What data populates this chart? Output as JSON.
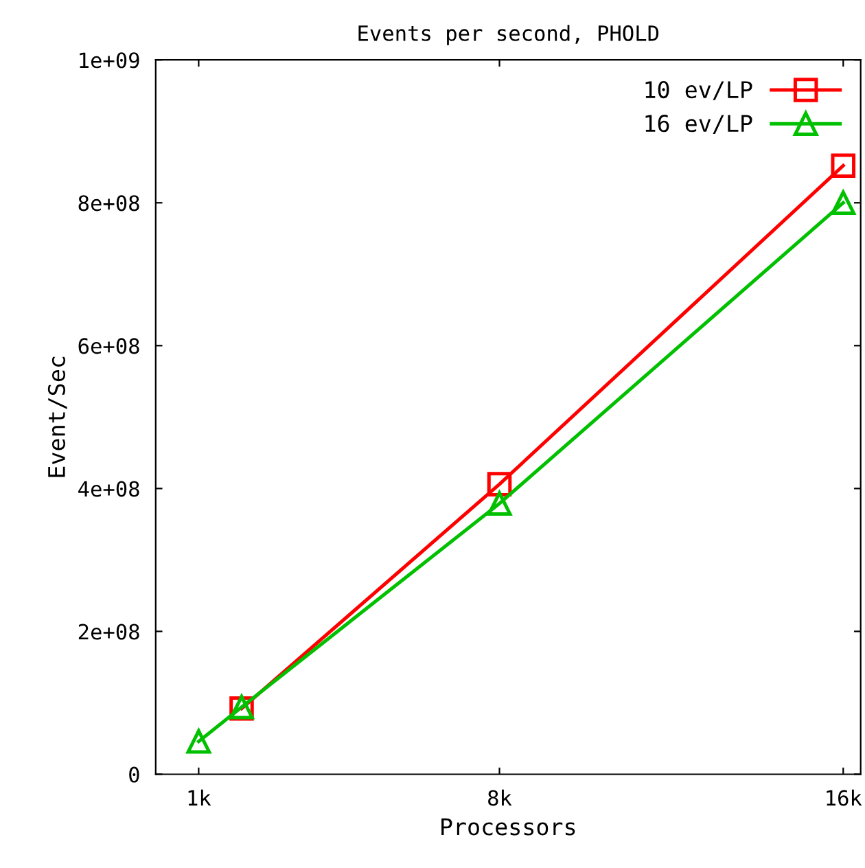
{
  "chart_data": {
    "type": "line",
    "title": "Events per second, PHOLD",
    "xlabel": "Processors",
    "ylabel": "Event/Sec",
    "xlim": [
      0,
      16800
    ],
    "xticks": [
      {
        "value": 1024,
        "label": "1k"
      },
      {
        "value": 8192,
        "label": "8k"
      },
      {
        "value": 16384,
        "label": "16k"
      }
    ],
    "ylim": [
      0,
      1000000000
    ],
    "yticks": [
      {
        "value": 0,
        "label": "0"
      },
      {
        "value": 200000000,
        "label": "2e+08"
      },
      {
        "value": 400000000,
        "label": "4e+08"
      },
      {
        "value": 600000000,
        "label": "6e+08"
      },
      {
        "value": 800000000,
        "label": "8e+08"
      },
      {
        "value": 1000000000,
        "label": "1e+09"
      }
    ],
    "grid": false,
    "legend": "top right",
    "line_style": "solid",
    "series": [
      {
        "name": "10 ev/LP",
        "color": "#ff0000",
        "marker": "square",
        "x": [
          2048,
          8192,
          16384
        ],
        "values": [
          92000000,
          406000000,
          852000000
        ]
      },
      {
        "name": "16 ev/LP",
        "color": "#00c000",
        "marker": "triangle",
        "x": [
          1024,
          2048,
          8192,
          16384
        ],
        "values": [
          46000000,
          94000000,
          379000000,
          800000000
        ]
      }
    ]
  }
}
